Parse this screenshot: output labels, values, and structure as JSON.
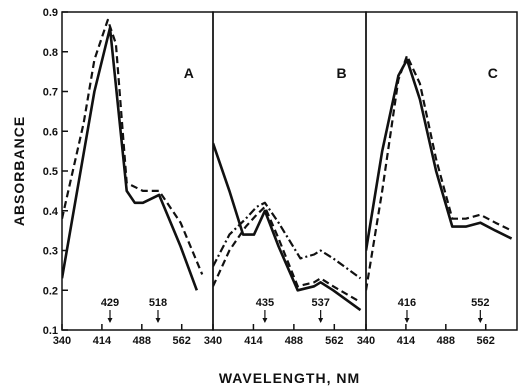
{
  "chart_data": {
    "type": "line",
    "ylabel": "ABSORBANCE",
    "xlabel": "WAVELENGTH, NM",
    "ylim": [
      0.1,
      0.9
    ],
    "yticks": [
      0.1,
      0.2,
      0.3,
      0.4,
      0.5,
      0.6,
      0.7,
      0.8,
      0.9
    ],
    "ytick_labels": [
      "0.1",
      "0.2",
      "0.3",
      "0.4",
      "0.5",
      "0.6",
      "0.7",
      "0.8",
      "0.9"
    ],
    "grid": false,
    "panels": [
      {
        "label": "A",
        "xlim": [
          340,
          620
        ],
        "xticks": [
          340,
          414,
          488,
          562
        ],
        "xtick_labels": [
          "340",
          "414",
          "488",
          "562"
        ],
        "peaks": [
          {
            "x": 429,
            "label": "429"
          },
          {
            "x": 518,
            "label": "518"
          }
        ],
        "series": [
          {
            "style": "solid",
            "x": [
              340,
              400,
              429,
              460,
              475,
              490,
              520,
              560,
              590
            ],
            "y": [
              0.23,
              0.7,
              0.86,
              0.45,
              0.42,
              0.42,
              0.44,
              0.31,
              0.2
            ]
          },
          {
            "style": "dashed",
            "x": [
              340,
              380,
              400,
              425,
              440,
              460,
              490,
              520,
              560,
              600
            ],
            "y": [
              0.38,
              0.62,
              0.78,
              0.88,
              0.82,
              0.47,
              0.45,
              0.45,
              0.37,
              0.24
            ]
          }
        ]
      },
      {
        "label": "B",
        "xlim": [
          340,
          620
        ],
        "xticks": [
          340,
          414,
          488,
          562
        ],
        "xtick_labels": [
          "340",
          "414",
          "488",
          "562"
        ],
        "peaks": [
          {
            "x": 435,
            "label": "435"
          },
          {
            "x": 537,
            "label": "537"
          }
        ],
        "series": [
          {
            "style": "solid",
            "x": [
              340,
              370,
              395,
              415,
              435,
              460,
              495,
              525,
              537,
              560,
              610
            ],
            "y": [
              0.57,
              0.45,
              0.34,
              0.34,
              0.4,
              0.31,
              0.2,
              0.21,
              0.22,
              0.2,
              0.15
            ]
          },
          {
            "style": "dashed",
            "x": [
              340,
              370,
              400,
              420,
              435,
              460,
              495,
              525,
              537,
              560,
              610
            ],
            "y": [
              0.21,
              0.3,
              0.36,
              0.39,
              0.41,
              0.33,
              0.21,
              0.22,
              0.23,
              0.21,
              0.17
            ]
          },
          {
            "style": "dashdot",
            "x": [
              340,
              370,
              400,
              420,
              435,
              460,
              500,
              525,
              537,
              560,
              610
            ],
            "y": [
              0.26,
              0.34,
              0.38,
              0.41,
              0.42,
              0.37,
              0.28,
              0.29,
              0.3,
              0.28,
              0.23
            ]
          }
        ]
      },
      {
        "label": "C",
        "xlim": [
          340,
          620
        ],
        "xticks": [
          340,
          414,
          488,
          562
        ],
        "xtick_labels": [
          "340",
          "414",
          "488",
          "562"
        ],
        "peaks": [
          {
            "x": 416,
            "label": "416"
          },
          {
            "x": 552,
            "label": "552"
          }
        ],
        "series": [
          {
            "style": "solid",
            "x": [
              340,
              370,
              400,
              416,
              440,
              470,
              500,
              525,
              552,
              580,
              610
            ],
            "y": [
              0.3,
              0.55,
              0.74,
              0.78,
              0.68,
              0.5,
              0.36,
              0.36,
              0.37,
              0.35,
              0.33
            ]
          },
          {
            "style": "dashed",
            "x": [
              340,
              370,
              400,
              416,
              440,
              470,
              500,
              525,
              552,
              580,
              610
            ],
            "y": [
              0.2,
              0.45,
              0.73,
              0.79,
              0.72,
              0.53,
              0.38,
              0.38,
              0.39,
              0.37,
              0.35
            ]
          }
        ]
      }
    ]
  }
}
